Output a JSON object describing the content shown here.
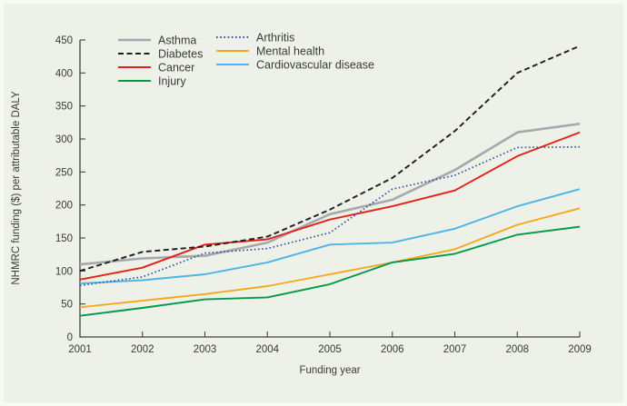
{
  "panel": {
    "background_color": "#edf1e8",
    "axis_color": "#45443f",
    "text_color": "#3b3b39"
  },
  "chart_data": {
    "type": "line",
    "title": "",
    "xlabel": "Funding year",
    "ylabel": "NHMRC funding ($) per attributable DALY",
    "x": [
      2001,
      2002,
      2003,
      2004,
      2005,
      2006,
      2007,
      2008,
      2009
    ],
    "ylim": [
      0,
      450
    ],
    "ytick_step": 50,
    "y_ticks": [
      0,
      50,
      100,
      150,
      200,
      250,
      300,
      350,
      400,
      450
    ],
    "grid": false,
    "legend_position": "top-left-inside-two-columns",
    "series": [
      {
        "name": "Asthma",
        "color": "#a6a8ab",
        "style": "solid",
        "width": 2.6,
        "values": [
          110,
          119,
          123,
          143,
          186,
          208,
          253,
          310,
          323
        ]
      },
      {
        "name": "Diabetes",
        "color": "#1d1d1b",
        "style": "dashed",
        "width": 1.9,
        "values": [
          100,
          129,
          137,
          152,
          193,
          241,
          312,
          400,
          441
        ]
      },
      {
        "name": "Cancer",
        "color": "#e32119",
        "style": "solid",
        "width": 1.9,
        "values": [
          87,
          105,
          140,
          148,
          178,
          198,
          222,
          274,
          310
        ]
      },
      {
        "name": "Injury",
        "color": "#009a49",
        "style": "solid",
        "width": 1.9,
        "values": [
          32,
          44,
          57,
          60,
          80,
          113,
          126,
          155,
          167
        ]
      },
      {
        "name": "Arthritis",
        "color": "#3a4ea5",
        "style": "dotted",
        "width": 1.7,
        "values": [
          78,
          91,
          127,
          134,
          158,
          224,
          245,
          287,
          288
        ]
      },
      {
        "name": "Mental health",
        "color": "#f6a81c",
        "style": "solid",
        "width": 1.9,
        "values": [
          45,
          55,
          65,
          77,
          95,
          113,
          133,
          170,
          195
        ]
      },
      {
        "name": "Cardiovascular disease",
        "color": "#4db4e8",
        "style": "solid",
        "width": 1.9,
        "values": [
          81,
          86,
          95,
          113,
          140,
          143,
          164,
          198,
          224
        ]
      }
    ],
    "legend_columns": [
      [
        "Asthma",
        "Diabetes",
        "Cancer",
        "Injury"
      ],
      [
        "Arthritis",
        "Mental health",
        "Cardiovascular disease"
      ]
    ]
  }
}
